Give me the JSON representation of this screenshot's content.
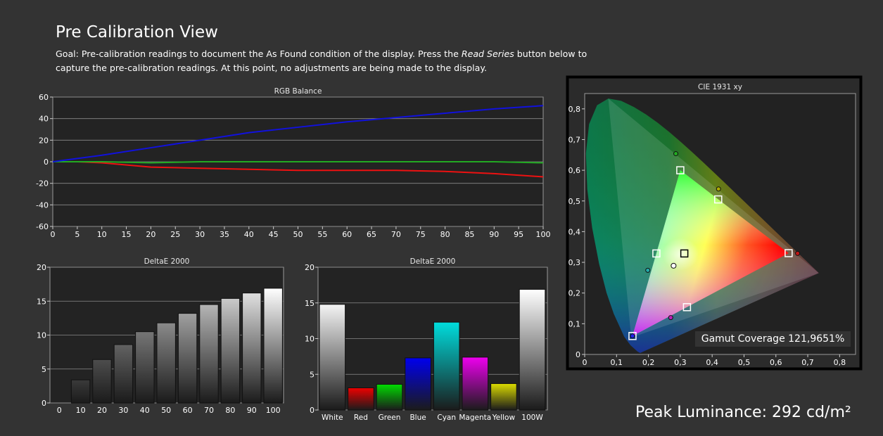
{
  "page": {
    "title": "Pre Calibration View",
    "goal_prefix": "Goal: Pre-calibration readings to document the As Found condition of the display. Press the ",
    "goal_emphasis": "Read Series",
    "goal_suffix": " button below to capture the pre-calibration readings. At this point, no adjustments are being made to the display.",
    "peak_label": "Peak Luminance:",
    "peak_value": "292 cd/m²",
    "gamut_label": "Gamut Coverage",
    "gamut_value": "121,9651%"
  },
  "chart_data": [
    {
      "id": "rgb-balance",
      "type": "line",
      "title": "RGB Balance",
      "xlim": [
        0,
        100
      ],
      "ylim": [
        -60,
        60
      ],
      "x_ticks": [
        0,
        5,
        10,
        15,
        20,
        25,
        30,
        35,
        40,
        45,
        50,
        55,
        60,
        65,
        70,
        75,
        80,
        85,
        90,
        95,
        100
      ],
      "y_ticks": [
        -60,
        -40,
        -20,
        0,
        20,
        40,
        60
      ],
      "grid": true,
      "x": [
        0,
        5,
        10,
        20,
        30,
        40,
        50,
        60,
        70,
        80,
        90,
        100
      ],
      "series": [
        {
          "color": "#ee1111",
          "values": [
            0,
            0,
            -1,
            -5,
            -6,
            -7,
            -8,
            -8,
            -8,
            -9,
            -11,
            -14
          ]
        },
        {
          "color": "#22aa22",
          "values": [
            0,
            0,
            0,
            -1,
            0,
            0,
            0,
            0,
            0,
            0,
            0,
            -1
          ]
        },
        {
          "color": "#1111dd",
          "values": [
            0,
            3,
            6,
            13,
            20,
            27,
            32,
            37,
            41,
            45,
            49,
            52
          ]
        }
      ]
    },
    {
      "id": "deltae-grayscale",
      "type": "bar",
      "title": "DeltaE 2000",
      "categories": [
        "0",
        "10",
        "20",
        "30",
        "40",
        "50",
        "60",
        "70",
        "80",
        "90",
        "100"
      ],
      "values": [
        0,
        3.4,
        6.4,
        8.6,
        10.5,
        11.8,
        13.2,
        14.5,
        15.4,
        16.2,
        16.9
      ],
      "bar_top_colors": [
        "#000000",
        "#3a3a3a",
        "#4d4d4d",
        "#626262",
        "#767676",
        "#8a8a8a",
        "#a0a0a0",
        "#b5b5b5",
        "#cacaca",
        "#e0e0e0",
        "#ffffff"
      ],
      "ylim": [
        0,
        20
      ],
      "y_ticks": [
        0,
        5,
        10,
        15,
        20
      ],
      "grid": true
    },
    {
      "id": "deltae-color",
      "type": "bar",
      "title": "DeltaE 2000",
      "categories": [
        "White",
        "Red",
        "Green",
        "Blue",
        "Cyan",
        "Magenta",
        "Yellow",
        "100W"
      ],
      "values": [
        14.8,
        3.1,
        3.6,
        7.3,
        12.3,
        7.4,
        3.7,
        16.9
      ],
      "bar_top_colors": [
        "#f4f4f4",
        "#ee0000",
        "#00dd00",
        "#0000ee",
        "#00dddd",
        "#ee00ee",
        "#dddd00",
        "#ffffff"
      ],
      "ylim": [
        0,
        20
      ],
      "y_ticks": [
        0,
        5,
        10,
        15,
        20
      ],
      "grid": true
    },
    {
      "id": "cie-1931",
      "type": "scatter",
      "title": "CIE 1931 xy",
      "xlim": [
        0,
        0.85
      ],
      "ylim": [
        0,
        0.85
      ],
      "x_ticks": [
        "0",
        "0,1",
        "0,2",
        "0,3",
        "0,4",
        "0,5",
        "0,6",
        "0,7",
        "0,8"
      ],
      "y_ticks": [
        "0",
        "0,1",
        "0,2",
        "0,3",
        "0,4",
        "0,5",
        "0,6",
        "0,7",
        "0,8"
      ],
      "target_gamut": [
        [
          0.64,
          0.33
        ],
        [
          0.3,
          0.6
        ],
        [
          0.15,
          0.06
        ]
      ],
      "measured_gamut": [
        [
          0.735,
          0.265
        ],
        [
          0.074,
          0.834
        ],
        [
          0.146,
          0.055
        ]
      ],
      "targets": [
        {
          "name": "Red",
          "x": 0.64,
          "y": 0.33
        },
        {
          "name": "Green",
          "x": 0.3,
          "y": 0.6
        },
        {
          "name": "Blue",
          "x": 0.15,
          "y": 0.06
        },
        {
          "name": "Yellow",
          "x": 0.419,
          "y": 0.505
        },
        {
          "name": "Cyan",
          "x": 0.225,
          "y": 0.329
        },
        {
          "name": "Magenta",
          "x": 0.321,
          "y": 0.154
        },
        {
          "name": "White",
          "x": 0.3127,
          "y": 0.329
        }
      ],
      "measured": [
        {
          "name": "Red",
          "x": 0.668,
          "y": 0.329,
          "color": "#c01515"
        },
        {
          "name": "Green",
          "x": 0.286,
          "y": 0.654,
          "color": "#22aa22"
        },
        {
          "name": "Blue",
          "x": 0.15,
          "y": 0.06,
          "color": "#2222ee"
        },
        {
          "name": "Yellow",
          "x": 0.42,
          "y": 0.539,
          "color": "#aaaa00"
        },
        {
          "name": "Cyan",
          "x": 0.198,
          "y": 0.274,
          "color": "#22aaaa"
        },
        {
          "name": "Magenta",
          "x": 0.27,
          "y": 0.12,
          "color": "#bb22bb"
        },
        {
          "name": "White",
          "x": 0.279,
          "y": 0.289,
          "color": "#ffffff"
        }
      ]
    }
  ]
}
